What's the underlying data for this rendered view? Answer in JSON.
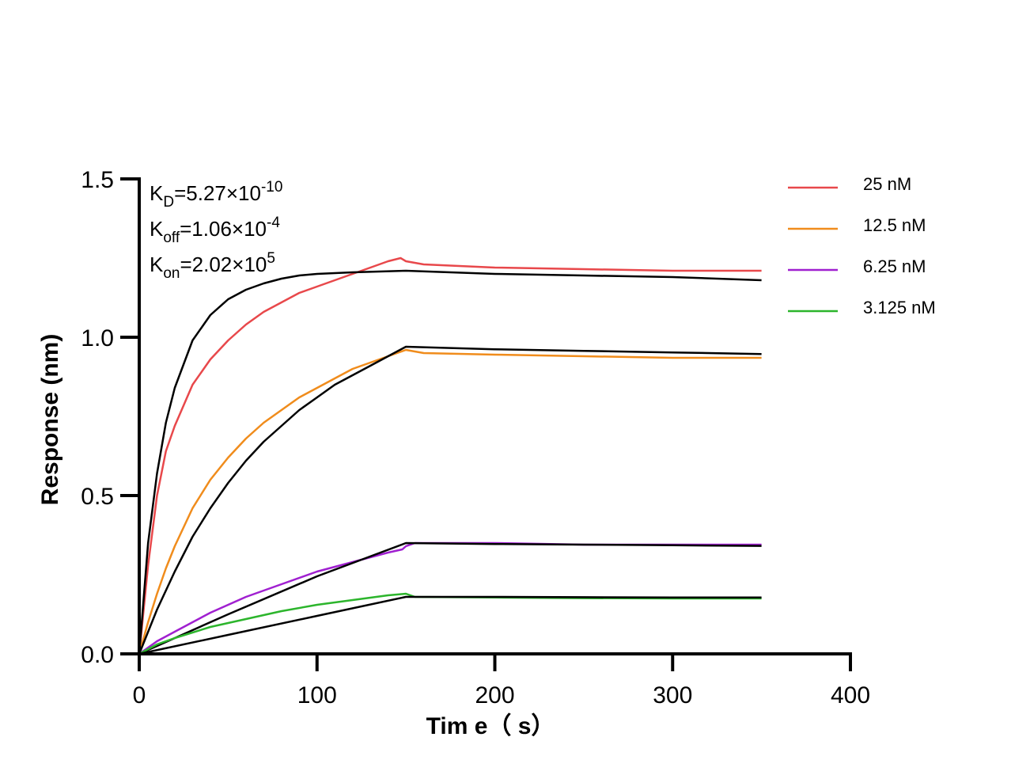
{
  "chart_data": {
    "type": "line",
    "xlabel": "Tim e（ s）",
    "ylabel": "Response (nm)",
    "xlim": [
      0,
      400
    ],
    "ylim": [
      0,
      1.5
    ],
    "x_ticks": [
      "0",
      "100",
      "200",
      "300",
      "400"
    ],
    "y_ticks": [
      "0.0",
      "0.5",
      "1.0",
      "1.5"
    ],
    "grid": false,
    "legend_position": "top-right",
    "annotations": {
      "kd": {
        "base": "K",
        "sub": "D",
        "main": "=5.27×10",
        "sup": "-10"
      },
      "koff": {
        "base": "K",
        "sub": "off",
        "main": "=1.06×10",
        "sup": "-4"
      },
      "kon": {
        "base": "K",
        "sub": "on",
        "main": "=2.02×10",
        "sup": "5"
      }
    },
    "series": [
      {
        "name": "25 nM",
        "color": "#e8484b",
        "measured": {
          "x": [
            0,
            5,
            10,
            15,
            20,
            30,
            40,
            50,
            60,
            70,
            80,
            90,
            100,
            110,
            120,
            130,
            140,
            147,
            150,
            160,
            200,
            250,
            300,
            350
          ],
          "y": [
            0,
            0.28,
            0.5,
            0.64,
            0.72,
            0.85,
            0.93,
            0.99,
            1.04,
            1.08,
            1.11,
            1.14,
            1.16,
            1.18,
            1.2,
            1.22,
            1.24,
            1.25,
            1.24,
            1.23,
            1.22,
            1.215,
            1.21,
            1.21
          ]
        },
        "fit": {
          "x": [
            0,
            5,
            10,
            15,
            20,
            30,
            40,
            50,
            60,
            70,
            80,
            90,
            100,
            120,
            150,
            200,
            250,
            300,
            350
          ],
          "y": [
            0,
            0.35,
            0.57,
            0.73,
            0.84,
            0.99,
            1.07,
            1.12,
            1.15,
            1.17,
            1.185,
            1.195,
            1.2,
            1.205,
            1.21,
            1.2,
            1.195,
            1.19,
            1.18
          ]
        }
      },
      {
        "name": "12.5 nM",
        "color": "#f08c1c",
        "measured": {
          "x": [
            0,
            5,
            10,
            15,
            20,
            30,
            40,
            50,
            60,
            70,
            80,
            90,
            100,
            110,
            120,
            130,
            140,
            150,
            160,
            200,
            250,
            300,
            350
          ],
          "y": [
            0,
            0.1,
            0.19,
            0.27,
            0.34,
            0.46,
            0.55,
            0.62,
            0.68,
            0.73,
            0.77,
            0.81,
            0.84,
            0.87,
            0.9,
            0.92,
            0.94,
            0.96,
            0.95,
            0.945,
            0.94,
            0.935,
            0.935
          ]
        },
        "fit": {
          "x": [
            0,
            10,
            20,
            30,
            40,
            50,
            60,
            70,
            80,
            90,
            100,
            110,
            120,
            130,
            140,
            150,
            200,
            250,
            300,
            350
          ],
          "y": [
            0,
            0.14,
            0.26,
            0.37,
            0.46,
            0.54,
            0.61,
            0.67,
            0.72,
            0.77,
            0.81,
            0.85,
            0.88,
            0.91,
            0.94,
            0.97,
            0.962,
            0.957,
            0.952,
            0.947
          ]
        }
      },
      {
        "name": "6.25 nM",
        "color": "#a020d0",
        "measured": {
          "x": [
            0,
            10,
            20,
            40,
            60,
            80,
            100,
            120,
            140,
            148,
            150,
            155,
            200,
            250,
            300,
            350
          ],
          "y": [
            0,
            0.04,
            0.07,
            0.13,
            0.18,
            0.22,
            0.26,
            0.29,
            0.32,
            0.33,
            0.34,
            0.35,
            0.35,
            0.345,
            0.345,
            0.345
          ]
        },
        "fit": {
          "x": [
            0,
            50,
            100,
            150,
            200,
            250,
            300,
            350
          ],
          "y": [
            0,
            0.125,
            0.245,
            0.35,
            0.347,
            0.345,
            0.343,
            0.341
          ]
        }
      },
      {
        "name": "3.125 nM",
        "color": "#2cb52c",
        "measured": {
          "x": [
            0,
            10,
            20,
            40,
            60,
            80,
            100,
            120,
            140,
            150,
            155,
            200,
            250,
            300,
            350
          ],
          "y": [
            0,
            0.03,
            0.05,
            0.085,
            0.11,
            0.135,
            0.155,
            0.17,
            0.185,
            0.19,
            0.18,
            0.178,
            0.176,
            0.175,
            0.175
          ]
        },
        "fit": {
          "x": [
            0,
            50,
            100,
            150,
            200,
            250,
            300,
            350
          ],
          "y": [
            0,
            0.06,
            0.12,
            0.18,
            0.18,
            0.179,
            0.178,
            0.178
          ]
        }
      }
    ]
  }
}
